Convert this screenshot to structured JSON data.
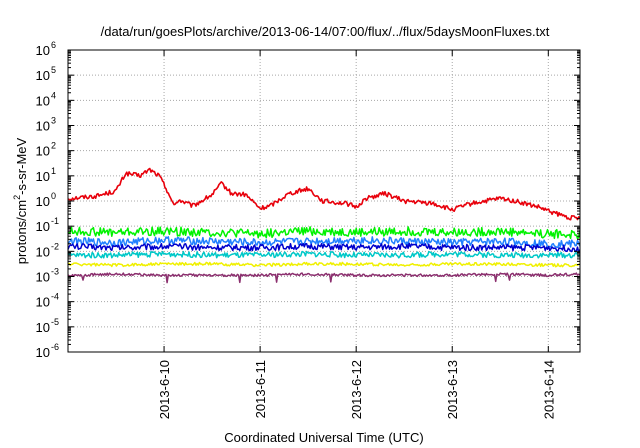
{
  "chart_data": {
    "type": "line",
    "title": "/data/run/goesPlots/archive/2013-06-14/07:00/flux/../flux/5daysMoonFluxes.txt",
    "xlabel": "Coordinated Universal Time (UTC)",
    "ylabel": {
      "base": "protons/cm",
      "sup": "2",
      "rest": "-s-sr-MeV"
    },
    "y_scale": "log",
    "y_exponent_range": [
      -6,
      6
    ],
    "y_tick_base": "10",
    "y_tick_exponents": [
      "-6",
      "-5",
      "-4",
      "-3",
      "-2",
      "-1",
      "0",
      "1",
      "2",
      "3",
      "4",
      "5",
      "6"
    ],
    "x_range_days": [
      0,
      5.33
    ],
    "x_tick_labels": [
      "2013-6-10",
      "2013-6-11",
      "2013-6-12",
      "2013-6-13",
      "2013-6-14"
    ],
    "x_tick_days": [
      1,
      2,
      3,
      4,
      5
    ],
    "grid": true,
    "legend": "none",
    "series": [
      {
        "color": "#e8000b",
        "x_days": [
          0.0,
          0.3,
          0.5,
          0.6,
          0.75,
          0.85,
          0.95,
          1.05,
          1.1,
          1.15,
          1.3,
          1.5,
          1.6,
          1.7,
          1.85,
          2.0,
          2.1,
          2.3,
          2.5,
          2.65,
          2.9,
          3.0,
          3.1,
          3.3,
          3.5,
          3.8,
          4.0,
          4.2,
          4.5,
          4.65,
          4.9,
          5.0,
          5.2,
          5.33
        ],
        "y_log10": [
          0.1,
          0.2,
          0.4,
          1.1,
          1.0,
          1.25,
          1.0,
          0.3,
          -0.2,
          0.05,
          -0.2,
          0.25,
          0.7,
          0.3,
          0.25,
          -0.3,
          -0.2,
          0.3,
          0.5,
          0.0,
          -0.1,
          -0.25,
          0.1,
          0.3,
          0.0,
          -0.1,
          -0.35,
          -0.1,
          0.1,
          0.0,
          -0.25,
          -0.4,
          -0.65,
          -0.7
        ]
      },
      {
        "color": "#00f200",
        "x_days": [
          0.0,
          0.5,
          1.0,
          1.5,
          2.0,
          2.5,
          3.0,
          3.5,
          4.0,
          4.5,
          5.0,
          5.33
        ],
        "y_log10": [
          -1.2,
          -1.25,
          -1.2,
          -1.25,
          -1.3,
          -1.2,
          -1.25,
          -1.2,
          -1.25,
          -1.2,
          -1.3,
          -1.35
        ]
      },
      {
        "color": "#2080ff",
        "x_days": [
          0.0,
          0.5,
          1.0,
          1.5,
          2.0,
          2.5,
          3.0,
          3.5,
          4.0,
          4.5,
          5.0,
          5.33
        ],
        "y_log10": [
          -1.6,
          -1.65,
          -1.55,
          -1.6,
          -1.65,
          -1.6,
          -1.55,
          -1.6,
          -1.65,
          -1.6,
          -1.7,
          -1.7
        ]
      },
      {
        "color": "#0000cc",
        "x_days": [
          0.0,
          0.5,
          1.0,
          1.5,
          2.0,
          2.5,
          3.0,
          3.5,
          4.0,
          4.5,
          5.0,
          5.33
        ],
        "y_log10": [
          -1.8,
          -1.85,
          -1.8,
          -1.85,
          -1.85,
          -1.8,
          -1.85,
          -1.8,
          -1.85,
          -1.85,
          -1.85,
          -1.9
        ]
      },
      {
        "color": "#00c8c8",
        "x_days": [
          0.0,
          0.5,
          1.0,
          1.5,
          2.0,
          2.5,
          3.0,
          3.5,
          4.0,
          4.5,
          5.0,
          5.33
        ],
        "y_log10": [
          -2.15,
          -2.15,
          -2.1,
          -2.15,
          -2.15,
          -2.1,
          -2.15,
          -2.15,
          -2.1,
          -2.15,
          -2.15,
          -2.15
        ]
      },
      {
        "color": "#f0f000",
        "x_days": [
          0.0,
          0.5,
          1.0,
          1.5,
          2.0,
          2.5,
          3.0,
          3.5,
          4.0,
          4.5,
          5.0,
          5.33
        ],
        "y_log10": [
          -2.5,
          -2.55,
          -2.5,
          -2.5,
          -2.55,
          -2.5,
          -2.5,
          -2.55,
          -2.5,
          -2.5,
          -2.55,
          -2.55
        ]
      },
      {
        "color": "#8b2f6e",
        "x_days": [
          0.0,
          0.5,
          1.0,
          1.5,
          2.0,
          2.5,
          3.0,
          3.5,
          4.0,
          4.5,
          5.0,
          5.33
        ],
        "y_log10": [
          -2.95,
          -2.9,
          -2.95,
          -2.95,
          -2.95,
          -2.9,
          -2.95,
          -2.95,
          -2.95,
          -2.9,
          -2.95,
          -2.9
        ]
      }
    ]
  }
}
